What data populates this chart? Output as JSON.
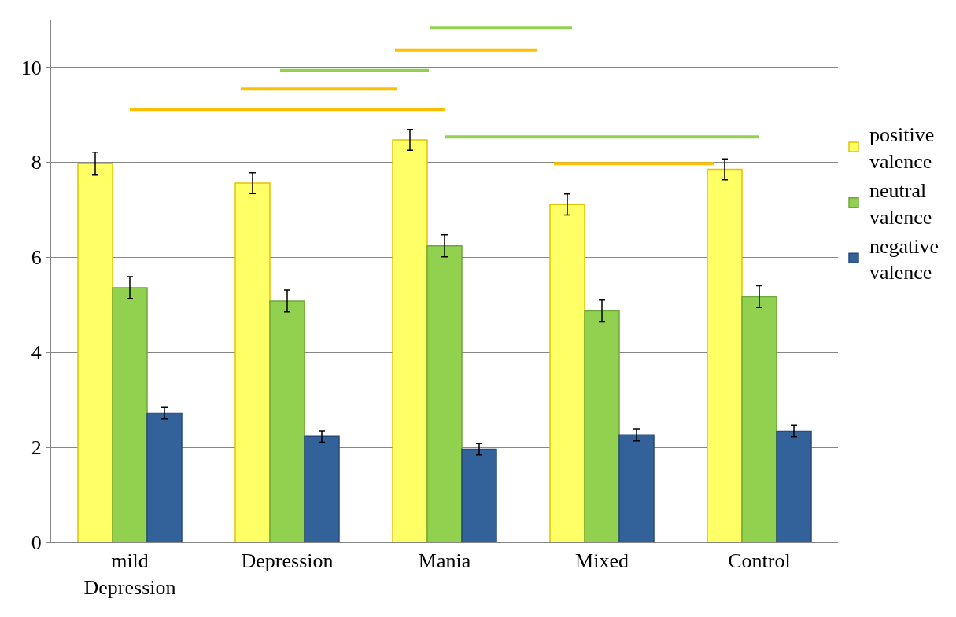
{
  "chart_data": {
    "type": "bar",
    "categories": [
      "mild Depression",
      "Depression",
      "Mania",
      "Mixed",
      "Control"
    ],
    "series": [
      {
        "name": "positive valence",
        "color": "#ffff66",
        "values": [
          7.97,
          7.56,
          8.47,
          7.11,
          7.85
        ],
        "errors": [
          0.24,
          0.22,
          0.22,
          0.22,
          0.22
        ]
      },
      {
        "name": "neutral valence",
        "color": "#92d050",
        "values": [
          5.36,
          5.08,
          6.24,
          4.87,
          5.17
        ],
        "errors": [
          0.23,
          0.23,
          0.23,
          0.23,
          0.23
        ]
      },
      {
        "name": "negative valence",
        "color": "#336199",
        "values": [
          2.72,
          2.23,
          1.96,
          2.26,
          2.34
        ],
        "errors": [
          0.12,
          0.12,
          0.12,
          0.12,
          0.12
        ]
      },
      {
        "type": "line",
        "color": "#ffc000",
        "values": [
          9.11,
          9.11,
          9.11,
          null,
          null
        ]
      },
      {
        "type": "line",
        "color": "#92d050",
        "values": [
          null,
          null,
          8.53,
          8.53,
          8.53
        ]
      }
    ],
    "ylim": [
      0,
      11
    ],
    "yticks": [
      0,
      2,
      4,
      6,
      8,
      10
    ],
    "grid": "y",
    "legend": "right"
  }
}
